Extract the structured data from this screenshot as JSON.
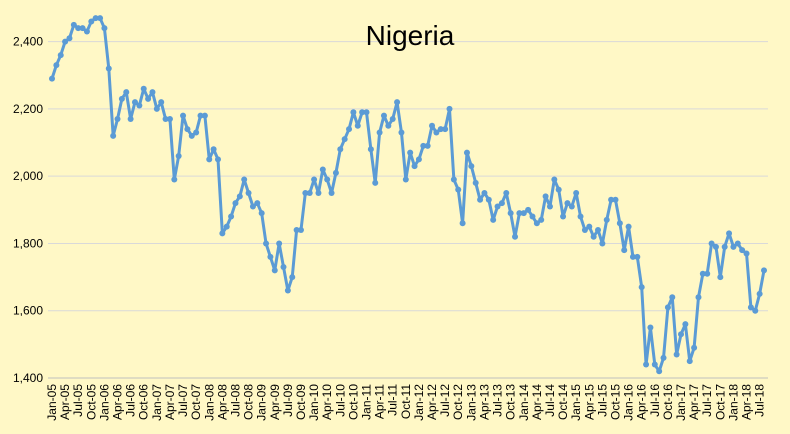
{
  "chart_data": {
    "type": "line",
    "title": "Nigeria",
    "xlabel": "",
    "ylabel": "",
    "ylim": [
      1400,
      2500
    ],
    "yticks": [
      1400,
      1600,
      1800,
      2000,
      2200,
      2400
    ],
    "yticklabels": [
      "1,400",
      "1,600",
      "1,800",
      "2,000",
      "2,200",
      "2,400"
    ],
    "xticklabels": [
      "Jan-05",
      "Apr-05",
      "Jul-05",
      "Oct-05",
      "Jan-06",
      "Apr-06",
      "Jul-06",
      "Oct-06",
      "Jan-07",
      "Apr-07",
      "Jul-07",
      "Oct-07",
      "Jan-08",
      "Apr-08",
      "Jul-08",
      "Oct-08",
      "Jan-09",
      "Apr-09",
      "Jul-09",
      "Oct-09",
      "Jan-10",
      "Apr-10",
      "Jul-10",
      "Oct-10",
      "Jan-11",
      "Apr-11",
      "Jul-11",
      "Oct-11",
      "Jan-12",
      "Apr-12",
      "Jul-12",
      "Oct-12",
      "Jan-13",
      "Apr-13",
      "Jul-13",
      "Oct-13",
      "Jan-14",
      "Apr-14",
      "Jul-14",
      "Oct-14",
      "Jan-15",
      "Apr-15",
      "Jul-15",
      "Oct-15",
      "Jan-16",
      "Apr-16",
      "Jul-16",
      "Oct-16",
      "Jan-17",
      "Apr-17",
      "Jul-17",
      "Oct-17",
      "Jan-18",
      "Apr-18",
      "Jul-18"
    ],
    "grid": true,
    "legend": "none",
    "series_color": "#5B9BD5",
    "gridline_color": "#D9D9D9",
    "background_color": "#FFF8C6",
    "series": [
      {
        "values": [
          2290,
          2330,
          2360,
          2400,
          2410,
          2450,
          2440,
          2440,
          2430,
          2460,
          2470,
          2470,
          2440,
          2320,
          2120,
          2170,
          2230,
          2250,
          2170,
          2220,
          2210,
          2260,
          2230,
          2250,
          2200,
          2220,
          2170,
          2170,
          1990,
          2060,
          2180,
          2140,
          2120,
          2130,
          2180,
          2180,
          2050,
          2080,
          2050,
          1830,
          1850,
          1880,
          1920,
          1940,
          1990,
          1950,
          1910,
          1920,
          1890,
          1800,
          1760,
          1720,
          1800,
          1730,
          1660,
          1700,
          1840,
          1840,
          1950,
          1950,
          1990,
          1950,
          2020,
          1990,
          1950,
          2010,
          2080,
          2110,
          2140,
          2190,
          2150,
          2190,
          2190,
          2080,
          1980,
          2130,
          2180,
          2150,
          2170,
          2220,
          2130,
          1990,
          2070,
          2030,
          2050,
          2090,
          2090,
          2150,
          2130,
          2140,
          2140,
          2200,
          1990,
          1960,
          1860,
          2070,
          2030,
          1980,
          1930,
          1950,
          1930,
          1870,
          1910,
          1920,
          1950,
          1890,
          1820,
          1890,
          1890,
          1900,
          1880,
          1860,
          1870,
          1940,
          1910,
          1990,
          1960,
          1880,
          1920,
          1910,
          1950,
          1880,
          1840,
          1850,
          1820,
          1840,
          1800,
          1870,
          1930,
          1930,
          1860,
          1780,
          1850,
          1760,
          1760,
          1670,
          1440,
          1550,
          1440,
          1420,
          1460,
          1610,
          1640,
          1470,
          1530,
          1560,
          1450,
          1490,
          1640,
          1710,
          1710,
          1800,
          1790,
          1700,
          1790,
          1830,
          1790,
          1800,
          1780,
          1770,
          1610,
          1600,
          1650,
          1720
        ]
      }
    ]
  }
}
